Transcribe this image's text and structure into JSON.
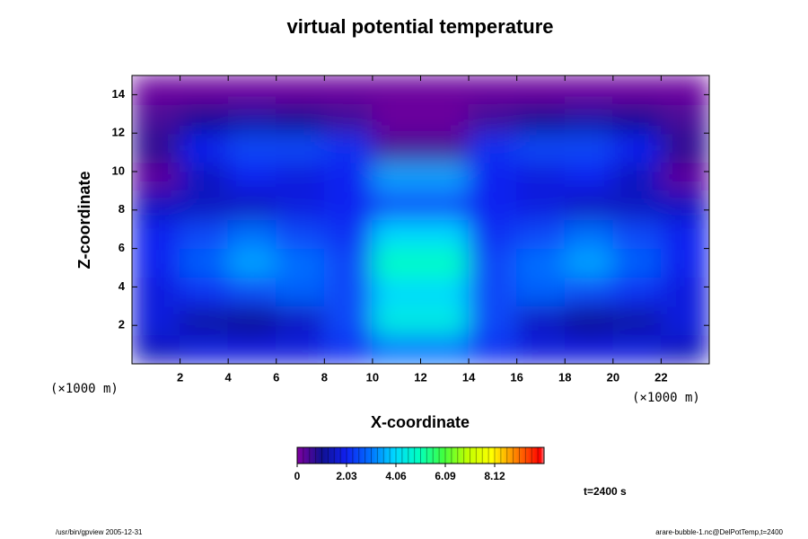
{
  "chart_data": {
    "type": "heatmap",
    "title": "virtual potential temperature",
    "xlabel": "X-coordinate",
    "ylabel": "Z-coordinate",
    "x_unit": "(×1000 m)",
    "y_unit": "(×1000 m)",
    "annotation": "t=2400 s",
    "footer_left": "/usr/bin/gpview 2005-12-31",
    "footer_right": "arare-bubble-1.nc@DelPotTemp,t=2400",
    "xlim": [
      0,
      24
    ],
    "ylim": [
      0,
      15
    ],
    "xticks": [
      2,
      4,
      6,
      8,
      10,
      12,
      14,
      16,
      18,
      20,
      22
    ],
    "yticks": [
      2,
      4,
      6,
      8,
      10,
      12,
      14
    ],
    "x": [
      1,
      3,
      5,
      7,
      9,
      11,
      13,
      15,
      17,
      19,
      21,
      23
    ],
    "y": [
      0.75,
      2.25,
      3.75,
      5.25,
      6.75,
      8.25,
      9.75,
      11.25,
      12.75,
      14.25
    ],
    "z": [
      [
        1.5,
        1.8,
        1.8,
        1.8,
        2.2,
        3.0,
        3.0,
        2.2,
        1.8,
        1.8,
        1.8,
        1.5
      ],
      [
        1.8,
        1.2,
        1.0,
        1.5,
        2.5,
        4.5,
        4.5,
        2.5,
        1.5,
        1.0,
        1.2,
        1.8
      ],
      [
        1.8,
        2.2,
        2.5,
        2.8,
        2.5,
        4.0,
        4.0,
        2.5,
        2.8,
        2.5,
        2.2,
        1.8
      ],
      [
        2.0,
        2.8,
        3.5,
        3.0,
        2.5,
        5.0,
        5.0,
        2.5,
        3.0,
        3.5,
        2.8,
        2.0
      ],
      [
        2.0,
        2.5,
        3.0,
        2.5,
        2.2,
        4.0,
        4.0,
        2.2,
        2.5,
        3.0,
        2.5,
        2.0
      ],
      [
        1.5,
        1.5,
        1.5,
        1.8,
        2.0,
        2.5,
        2.5,
        2.0,
        1.8,
        1.5,
        1.5,
        1.5
      ],
      [
        0.3,
        1.5,
        2.0,
        1.8,
        2.0,
        3.5,
        3.5,
        2.0,
        1.8,
        2.0,
        1.5,
        0.3
      ],
      [
        0.8,
        2.0,
        2.5,
        2.5,
        2.2,
        0.5,
        0.5,
        2.2,
        2.5,
        2.5,
        2.0,
        0.8
      ],
      [
        0.5,
        1.0,
        1.2,
        1.0,
        0.6,
        0.2,
        0.2,
        0.6,
        1.0,
        1.2,
        1.0,
        0.5
      ],
      [
        0.2,
        0.2,
        0.2,
        0.2,
        0.2,
        0.2,
        0.2,
        0.2,
        0.2,
        0.2,
        0.2,
        0.2
      ]
    ],
    "clim": [
      0,
      10.15
    ],
    "cticks": [
      0,
      2.03,
      4.06,
      6.09,
      8.12
    ],
    "colorscale": [
      [
        0,
        "#8000a0"
      ],
      [
        1,
        "#101090"
      ],
      [
        2,
        "#1020f0"
      ],
      [
        3,
        "#0070ff"
      ],
      [
        4,
        "#00d8ff"
      ],
      [
        5,
        "#00ffc0"
      ],
      [
        6,
        "#40ff40"
      ],
      [
        7,
        "#c0ff00"
      ],
      [
        8,
        "#ffff00"
      ],
      [
        9,
        "#ff8000"
      ],
      [
        10,
        "#ff0000"
      ],
      [
        10.15,
        "#ff9090"
      ]
    ]
  }
}
